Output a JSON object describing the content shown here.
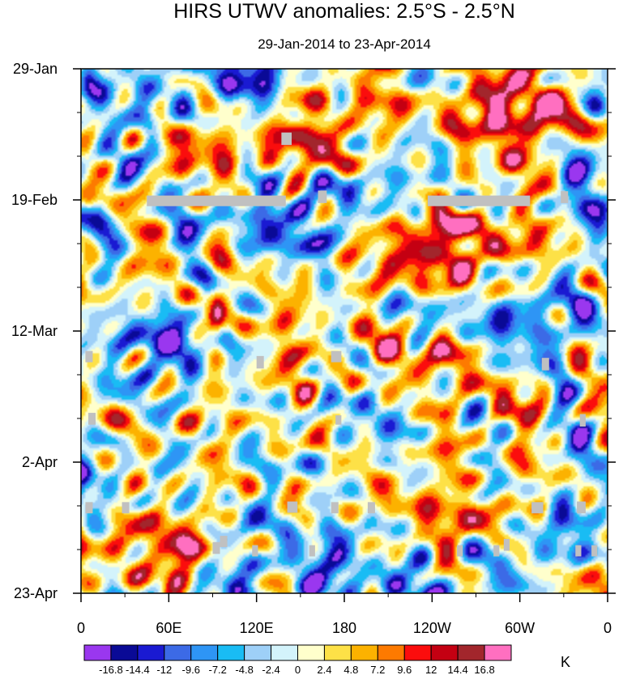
{
  "chart_data": {
    "type": "heatmap",
    "title": "HIRS UTWV anomalies: 2.5°S - 2.5°N",
    "subtitle": "29-Jan-2014 to 23-Apr-2014",
    "x_ticks": [
      {
        "lon": 0,
        "label": "0"
      },
      {
        "lon": 60,
        "label": "60E"
      },
      {
        "lon": 120,
        "label": "120E"
      },
      {
        "lon": 180,
        "label": "180"
      },
      {
        "lon": 240,
        "label": "120W"
      },
      {
        "lon": 300,
        "label": "60W"
      },
      {
        "lon": 360,
        "label": "0"
      }
    ],
    "xlim": [
      0,
      360
    ],
    "y_ticks": [
      {
        "day": 0,
        "label": "29-Jan"
      },
      {
        "day": 21,
        "label": "19-Feb"
      },
      {
        "day": 42,
        "label": "12-Mar"
      },
      {
        "day": 63,
        "label": "2-Apr"
      },
      {
        "day": 84,
        "label": "23-Apr"
      }
    ],
    "ylim_days": [
      0,
      84
    ],
    "colorbar": {
      "labels": [
        "-16.8",
        "-14.4",
        "-12",
        "-9.6",
        "-7.2",
        "-4.8",
        "-2.4",
        "0",
        "2.4",
        "4.8",
        "7.2",
        "9.6",
        "12",
        "14.4",
        "16.8"
      ],
      "colors": [
        "#9a37ef",
        "#0a0a96",
        "#1a1ad2",
        "#3c6ae6",
        "#2e95f5",
        "#19bcf4",
        "#9ed0f8",
        "#d3f3fb",
        "#ffffcc",
        "#fde147",
        "#fcb200",
        "#fd7a00",
        "#fb0d0d",
        "#c40012",
        "#a2262c",
        "#ff6fc0"
      ],
      "units": "K"
    },
    "missing_color": "#c0c0c0",
    "features": [
      {
        "lon": 262,
        "day": 11,
        "value": 9.6,
        "r_lon": 40,
        "r_day": 10
      },
      {
        "lon": 230,
        "day": 28,
        "value": 12,
        "r_lon": 22,
        "r_day": 7
      },
      {
        "lon": 215,
        "day": 45,
        "value": 12,
        "r_lon": 38,
        "r_day": 4
      },
      {
        "lon": 245,
        "day": 47,
        "value": 10,
        "r_lon": 18,
        "r_day": 4
      },
      {
        "lon": 92,
        "day": 40,
        "value": 12,
        "r_lon": 6,
        "r_day": 6
      },
      {
        "lon": 97,
        "day": 28,
        "value": 9.6,
        "r_lon": 9,
        "r_day": 4
      },
      {
        "lon": 70,
        "day": 77,
        "value": 14.4,
        "r_lon": 12,
        "r_day": 5
      },
      {
        "lon": 62,
        "day": 81,
        "value": 10,
        "r_lon": 10,
        "r_day": 3
      },
      {
        "lon": 290,
        "day": 2,
        "value": 9.6,
        "r_lon": 12,
        "r_day": 4
      },
      {
        "lon": 325,
        "day": 8,
        "value": 8,
        "r_lon": 8,
        "r_day": 4
      },
      {
        "lon": 310,
        "day": 68,
        "value": 9,
        "r_lon": 22,
        "r_day": 3
      },
      {
        "lon": 265,
        "day": 73,
        "value": 7,
        "r_lon": 22,
        "r_day": 3
      },
      {
        "lon": 170,
        "day": 12,
        "value": 7,
        "r_lon": 20,
        "r_day": 4
      },
      {
        "lon": 120,
        "day": 50,
        "value": 6,
        "r_lon": 14,
        "r_day": 4
      },
      {
        "lon": 180,
        "day": 57,
        "value": 6,
        "r_lon": 20,
        "r_day": 4
      },
      {
        "lon": 17,
        "day": 62,
        "value": 7,
        "r_lon": 10,
        "r_day": 4
      },
      {
        "lon": 215,
        "day": 63,
        "value": 6,
        "r_lon": 30,
        "r_day": 4
      },
      {
        "lon": 45,
        "day": 20,
        "value": 6,
        "r_lon": 10,
        "r_day": 6
      },
      {
        "lon": 135,
        "day": 8,
        "value": 6,
        "r_lon": 12,
        "r_day": 4
      },
      {
        "lon": 340,
        "day": 46,
        "value": 6,
        "r_lon": 8,
        "r_day": 5
      },
      {
        "lon": 5,
        "day": 21,
        "value": 6,
        "r_lon": 6,
        "r_day": 6
      },
      {
        "lon": 45,
        "day": 10,
        "value": -14.4,
        "r_lon": 9,
        "r_day": 4
      },
      {
        "lon": 40,
        "day": 16,
        "value": -8,
        "r_lon": 18,
        "r_day": 5
      },
      {
        "lon": 110,
        "day": 5,
        "value": -6,
        "r_lon": 20,
        "r_day": 6
      },
      {
        "lon": 55,
        "day": 42,
        "value": -9.6,
        "r_lon": 20,
        "r_day": 7
      },
      {
        "lon": 20,
        "day": 27,
        "value": -6,
        "r_lon": 15,
        "r_day": 5
      },
      {
        "lon": 180,
        "day": 76,
        "value": -11,
        "r_lon": 20,
        "r_day": 6
      },
      {
        "lon": 160,
        "day": 24,
        "value": -7.2,
        "r_lon": 14,
        "r_day": 10
      },
      {
        "lon": 195,
        "day": 45,
        "value": -6,
        "r_lon": 10,
        "r_day": 10
      },
      {
        "lon": 170,
        "day": 40,
        "value": -6,
        "r_lon": 10,
        "r_day": 6
      },
      {
        "lon": 350,
        "day": 3,
        "value": -7,
        "r_lon": 8,
        "r_day": 5
      },
      {
        "lon": 5,
        "day": 2,
        "value": -7,
        "r_lon": 6,
        "r_day": 3
      },
      {
        "lon": 125,
        "day": 70,
        "value": -5,
        "r_lon": 14,
        "r_day": 5
      },
      {
        "lon": 335,
        "day": 55,
        "value": -5,
        "r_lon": 20,
        "r_day": 6
      },
      {
        "lon": 285,
        "day": 55,
        "value": -5,
        "r_lon": 15,
        "r_day": 6
      },
      {
        "lon": 300,
        "day": 35,
        "value": -4,
        "r_lon": 20,
        "r_day": 8
      },
      {
        "lon": 90,
        "day": 60,
        "value": -4,
        "r_lon": 15,
        "r_day": 5
      },
      {
        "lon": 240,
        "day": 80,
        "value": -4,
        "r_lon": 25,
        "r_day": 4
      }
    ],
    "missing_segments": [
      {
        "lon_start": 45,
        "lon_end": 140,
        "day": 20.3,
        "day_end": 22.0
      },
      {
        "lon_start": 237,
        "lon_end": 307,
        "day": 20.3,
        "day_end": 22.0
      },
      {
        "lon_start": 137,
        "lon_end": 144,
        "day": 10.2,
        "day_end": 12.2
      },
      {
        "lon_start": 162,
        "lon_end": 168,
        "day": 19.5,
        "day_end": 21.5
      },
      {
        "lon_start": 328,
        "lon_end": 333,
        "day": 19.6,
        "day_end": 21.5
      },
      {
        "lon_start": 3,
        "lon_end": 8,
        "day": 45.2,
        "day_end": 47.0
      },
      {
        "lon_start": 120,
        "lon_end": 125,
        "day": 46.0,
        "day_end": 48.0
      },
      {
        "lon_start": 171,
        "lon_end": 178,
        "day": 45.2,
        "day_end": 47.0
      },
      {
        "lon_start": 315,
        "lon_end": 320,
        "day": 46.3,
        "day_end": 48.3
      },
      {
        "lon_start": 5,
        "lon_end": 10,
        "day": 55.1,
        "day_end": 57.0
      },
      {
        "lon_start": 174,
        "lon_end": 178,
        "day": 55.5,
        "day_end": 57.0
      },
      {
        "lon_start": 341,
        "lon_end": 345,
        "day": 55.3,
        "day_end": 57.3
      },
      {
        "lon_start": 3,
        "lon_end": 8,
        "day": 69.4,
        "day_end": 71.2
      },
      {
        "lon_start": 28,
        "lon_end": 33,
        "day": 69.4,
        "day_end": 71.2
      },
      {
        "lon_start": 141,
        "lon_end": 148,
        "day": 69.3,
        "day_end": 71.1
      },
      {
        "lon_start": 171,
        "lon_end": 176,
        "day": 69.4,
        "day_end": 71.2
      },
      {
        "lon_start": 196,
        "lon_end": 201,
        "day": 69.4,
        "day_end": 71.2
      },
      {
        "lon_start": 308,
        "lon_end": 316,
        "day": 69.4,
        "day_end": 71.2
      },
      {
        "lon_start": 339,
        "lon_end": 345,
        "day": 69.3,
        "day_end": 71.2
      },
      {
        "lon_start": 90,
        "lon_end": 95,
        "day": 75.8,
        "day_end": 77.7
      },
      {
        "lon_start": 95,
        "lon_end": 100,
        "day": 74.8,
        "day_end": 76.6
      },
      {
        "lon_start": 117,
        "lon_end": 121,
        "day": 76.3,
        "day_end": 78.1
      },
      {
        "lon_start": 156,
        "lon_end": 160,
        "day": 76.3,
        "day_end": 78.1
      },
      {
        "lon_start": 257,
        "lon_end": 261,
        "day": 76.3,
        "day_end": 78.1
      },
      {
        "lon_start": 282,
        "lon_end": 286,
        "day": 76.3,
        "day_end": 78.1
      },
      {
        "lon_start": 289,
        "lon_end": 293,
        "day": 75.3,
        "day_end": 77.2
      },
      {
        "lon_start": 338,
        "lon_end": 342,
        "day": 76.3,
        "day_end": 78.1
      },
      {
        "lon_start": 349,
        "lon_end": 353,
        "day": 76.3,
        "day_end": 78.1
      }
    ]
  }
}
